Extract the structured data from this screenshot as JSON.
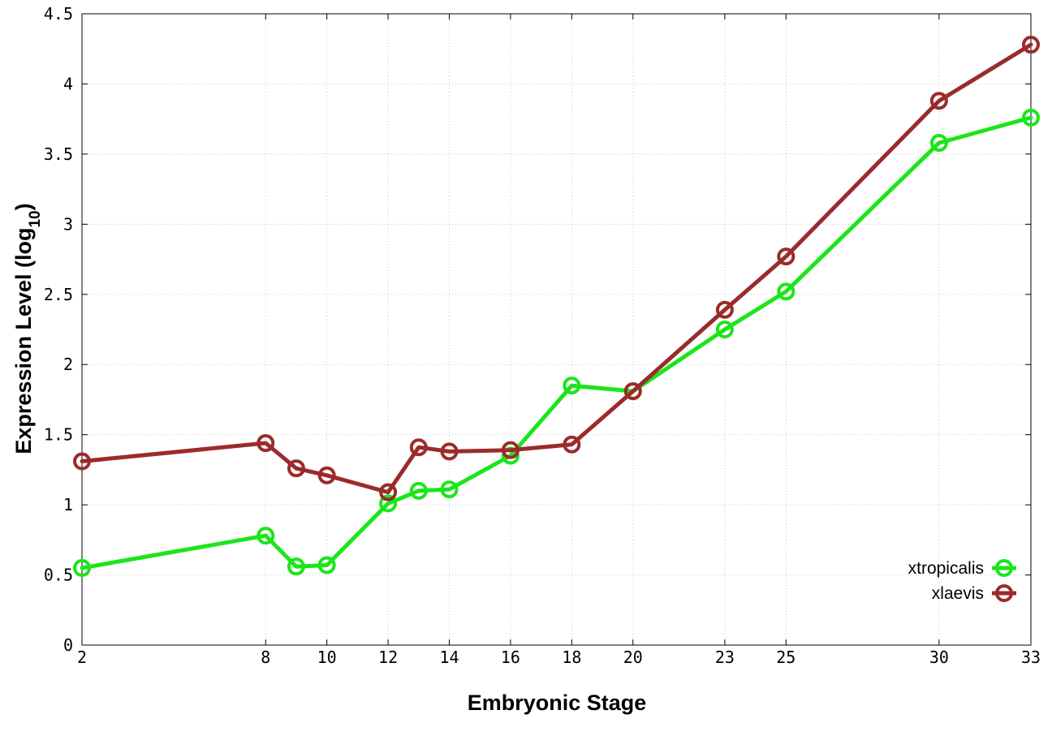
{
  "chart_data": {
    "type": "line",
    "xlabel": "Embryonic Stage",
    "ylabel_main": "Expression Level (log",
    "ylabel_sub": "10",
    "ylabel_close": ")",
    "xlim": [
      2,
      33
    ],
    "ylim": [
      0,
      4.5
    ],
    "x_ticks": [
      2,
      8,
      10,
      12,
      14,
      16,
      18,
      20,
      23,
      25,
      30,
      33
    ],
    "y_ticks": [
      0,
      0.5,
      1,
      1.5,
      2,
      2.5,
      3,
      3.5,
      4,
      4.5
    ],
    "grid": true,
    "legend_position": "bottom-right",
    "x": [
      2,
      8,
      9,
      10,
      12,
      13,
      14,
      16,
      18,
      20,
      23,
      25,
      30,
      33
    ],
    "series": [
      {
        "name": "xtropicalis",
        "color": "#1be51b",
        "values": [
          0.55,
          0.78,
          0.56,
          0.57,
          1.01,
          1.1,
          1.11,
          1.35,
          1.85,
          1.81,
          2.25,
          2.52,
          3.58,
          3.76
        ]
      },
      {
        "name": "xlaevis",
        "color": "#9b2b2b",
        "values": [
          1.31,
          1.44,
          1.26,
          1.21,
          1.09,
          1.41,
          1.38,
          1.39,
          1.43,
          1.81,
          2.39,
          2.77,
          3.88,
          4.28
        ]
      }
    ]
  }
}
